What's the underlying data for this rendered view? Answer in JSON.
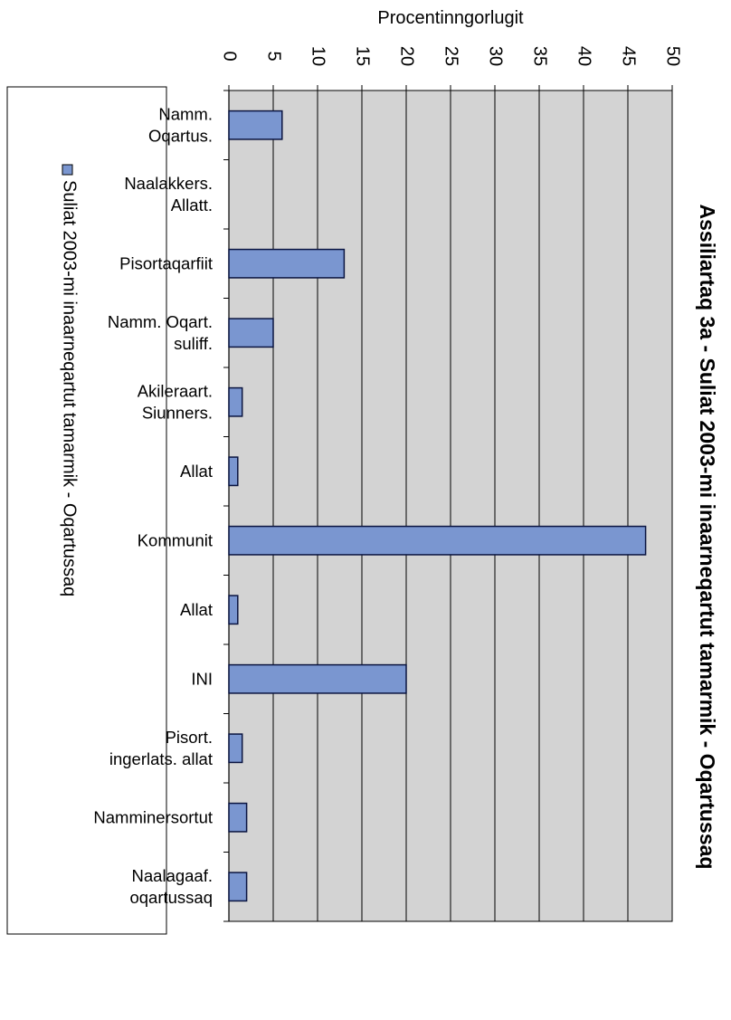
{
  "chart_data": {
    "type": "bar",
    "orientation": "horizontal",
    "title": "Assiliartaq 3a - Suliat 2003-mi inaarneqartut tamarmik - Oqartussaq",
    "xlabel": "Procentinngorlugit",
    "ylabel": "",
    "xlim": [
      0,
      50
    ],
    "x_ticks": [
      0,
      5,
      10,
      15,
      20,
      25,
      30,
      35,
      40,
      45,
      50
    ],
    "grid": true,
    "legend_position": "left",
    "colors": {
      "bar_fill": "#7a96d0",
      "bar_stroke": "#0a1440",
      "plot_background": "#d3d3d3",
      "legend_swatch": "#7a96d0"
    },
    "categories": [
      "Namm.\nOqartus.",
      "Naalakkers.\nAllatt.",
      "Pisortaqarfiit",
      "Namm. Oqart.\nsuliff.",
      "Akileraart.\nSiunners.",
      "Allat",
      "Kommunit",
      "Allat",
      "INI",
      "Pisort.\ningerlats. allat",
      "Namminersortut",
      "Naalagaaf.\noqartussaq"
    ],
    "series": [
      {
        "name": "Suliat 2003-mi inaarneqartut tamarmik - Oqartussaq",
        "values": [
          6,
          0,
          13,
          5,
          1.5,
          1,
          47,
          1,
          20,
          1.5,
          2,
          2
        ]
      }
    ]
  }
}
